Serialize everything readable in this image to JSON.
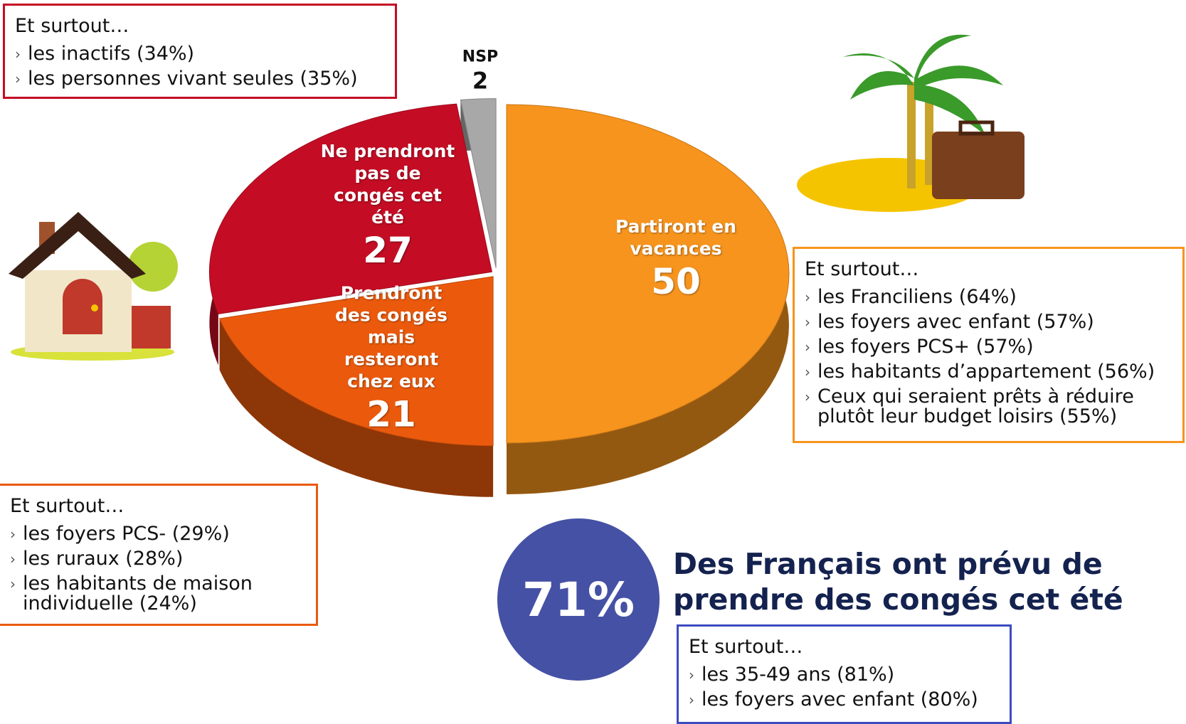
{
  "chart_data": {
    "type": "pie",
    "categories": [
      "Partiront en vacances",
      "Prendront des congés mais resteront chez eux",
      "Ne prendront pas de congés cet été",
      "NSP"
    ],
    "values": [
      50,
      21,
      27,
      2
    ],
    "colors": [
      "#f7941d",
      "#eb5a0c",
      "#c40d24",
      "#a8a8a8"
    ]
  },
  "callouts": [
    {
      "heading": "Et surtout…",
      "items": [
        "les inactifs (34%)",
        "les personnes vivant seules (35%)"
      ]
    },
    {
      "heading": "Et surtout…",
      "items": [
        "les Franciliens (64%)",
        "les foyers avec enfant (57%)",
        "les foyers PCS+ (57%)",
        "les habitants d’appartement (56%)",
        "Ceux qui seraient prêts à réduire plutôt leur budget loisirs (55%)"
      ]
    },
    {
      "heading": "Et surtout…",
      "items": [
        "les foyers PCS- (29%)",
        "les ruraux (28%)",
        "les habitants de maison individuelle (24%)"
      ]
    },
    {
      "heading": "Et surtout…",
      "items": [
        "les 35-49 ans (81%)",
        "les foyers avec enfant (80%)"
      ]
    }
  ],
  "summary": {
    "figure": "71%",
    "headline": "Des Français ont prévu de prendre des congés cet été"
  }
}
